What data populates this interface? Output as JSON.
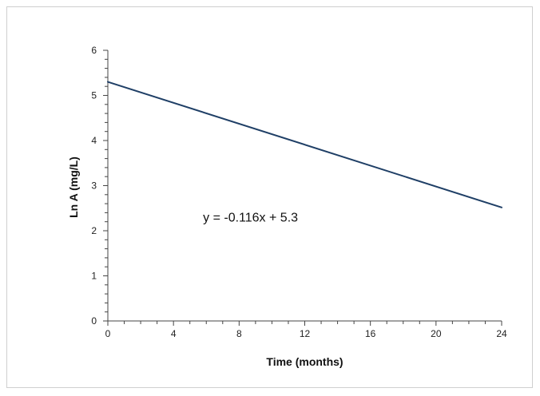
{
  "chart_data": {
    "type": "line",
    "title": "",
    "xlabel": "Time (months)",
    "ylabel": "Ln A (mg/L)",
    "xlim": [
      0,
      24
    ],
    "ylim": [
      0,
      6
    ],
    "x_ticks": [
      0,
      4,
      8,
      12,
      16,
      20,
      24
    ],
    "y_ticks": [
      0,
      1,
      2,
      3,
      4,
      5,
      6
    ],
    "x_tick_labels": [
      "0",
      "4",
      "8",
      "12",
      "16",
      "20",
      "24"
    ],
    "y_tick_labels": [
      "0",
      "1",
      "2",
      "3",
      "4",
      "5",
      "6"
    ],
    "grid": false,
    "legend": "none",
    "series": [
      {
        "x": [
          0,
          24
        ],
        "y": [
          5.3,
          2.516
        ],
        "color": "#1f3f66"
      }
    ],
    "annotation": {
      "text": "y = -0.116x + 5.3",
      "x": 5.8,
      "y": 2.2
    }
  }
}
